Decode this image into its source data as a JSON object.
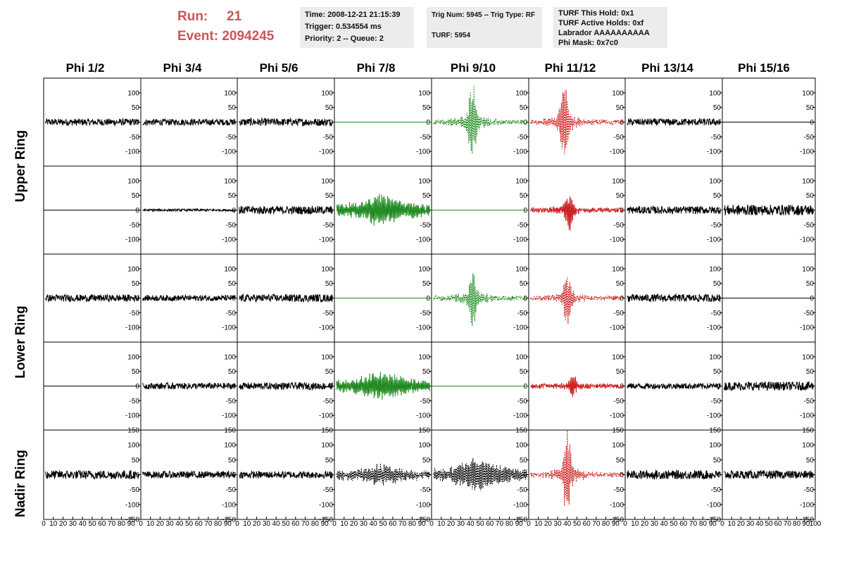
{
  "header": {
    "run_label": "Run:",
    "run_value": "21",
    "event_label": "Event:",
    "event_value": "2094245"
  },
  "info_boxes": {
    "time": "Time: 2008-12-21 21:15:39",
    "trigger": "Trigger: 0.534554 ms",
    "priority": "Priority: 2 -- Queue: 2",
    "trig_num": "Trig Num: 5945 -- Trig Type: RF",
    "turf": "TURF: 5954",
    "turf_this_hold": "TURF This Hold: 0x1",
    "turf_active_holds": "TURF Active Holds: 0xf",
    "labrador": "Labrador AAAAAAAAAA",
    "phi_mask": "Phi Mask: 0x7c0"
  },
  "columns": [
    "Phi 1/2",
    "Phi 3/4",
    "Phi 5/6",
    "Phi 7/8",
    "Phi 9/10",
    "Phi 11/12",
    "Phi 13/14",
    "Phi 15/16"
  ],
  "row_groups": [
    "Upper Ring",
    "Lower Ring",
    "Nadir Ring"
  ],
  "colors": {
    "normal": "#000000",
    "green": "#228b22",
    "red": "#cc2222"
  },
  "chart_data": {
    "type": "line",
    "xlim": [
      0,
      100
    ],
    "x_ticks": [
      "0",
      "10",
      "20",
      "30",
      "40",
      "50",
      "60",
      "70",
      "80",
      "90",
      "100"
    ],
    "ylim_ring": [
      -150,
      150
    ],
    "ylim_nadir": [
      -150,
      150
    ],
    "y_ticks_ring": [
      "100",
      "50",
      "0",
      "-50",
      "-100"
    ],
    "y_ticks_nadir": [
      "150",
      "100",
      "50",
      "0",
      "-50",
      "-100",
      "-150"
    ],
    "panel_rows": [
      {
        "group": "Upper Ring",
        "panels": [
          {
            "style": "noise",
            "amp": 12,
            "color": "normal"
          },
          {
            "style": "noise",
            "amp": 11,
            "color": "normal"
          },
          {
            "style": "noise",
            "amp": 13,
            "color": "normal"
          },
          {
            "style": "flat",
            "amp": 0,
            "color": "green"
          },
          {
            "style": "pulse",
            "amp": 120,
            "color": "green",
            "center": 42
          },
          {
            "style": "pulse",
            "amp": 130,
            "color": "red",
            "center": 37
          },
          {
            "style": "noise",
            "amp": 12,
            "color": "normal"
          },
          {
            "style": "flat",
            "amp": 0,
            "color": "normal"
          }
        ]
      },
      {
        "group": "Upper Ring",
        "panels": [
          {
            "style": "flat",
            "amp": 0,
            "color": "normal"
          },
          {
            "style": "noise",
            "amp": 4,
            "color": "normal"
          },
          {
            "style": "noise",
            "amp": 14,
            "color": "normal"
          },
          {
            "style": "wide",
            "amp": 55,
            "color": "green",
            "center": 50
          },
          {
            "style": "flat",
            "amp": 0,
            "color": "green"
          },
          {
            "style": "pulse",
            "amp": 65,
            "color": "red",
            "center": 42
          },
          {
            "style": "noise",
            "amp": 13,
            "color": "normal"
          },
          {
            "style": "noise",
            "amp": 18,
            "color": "normal"
          }
        ]
      },
      {
        "group": "Lower Ring",
        "panels": [
          {
            "style": "noise",
            "amp": 12,
            "color": "normal"
          },
          {
            "style": "noise",
            "amp": 10,
            "color": "normal"
          },
          {
            "style": "noise",
            "amp": 13,
            "color": "normal"
          },
          {
            "style": "flat",
            "amp": 0,
            "color": "green"
          },
          {
            "style": "pulse",
            "amp": 95,
            "color": "green",
            "center": 42
          },
          {
            "style": "pulse",
            "amp": 80,
            "color": "red",
            "center": 40
          },
          {
            "style": "noise",
            "amp": 13,
            "color": "normal"
          },
          {
            "style": "flat",
            "amp": 0,
            "color": "normal"
          }
        ]
      },
      {
        "group": "Lower Ring",
        "panels": [
          {
            "style": "flat",
            "amp": 0,
            "color": "normal"
          },
          {
            "style": "noise",
            "amp": 11,
            "color": "normal"
          },
          {
            "style": "noise",
            "amp": 12,
            "color": "normal"
          },
          {
            "style": "wide",
            "amp": 50,
            "color": "green",
            "center": 50
          },
          {
            "style": "flat",
            "amp": 0,
            "color": "green"
          },
          {
            "style": "pulse",
            "amp": 40,
            "color": "red",
            "center": 45
          },
          {
            "style": "noise",
            "amp": 10,
            "color": "normal"
          },
          {
            "style": "noise",
            "amp": 15,
            "color": "normal"
          }
        ]
      },
      {
        "group": "Nadir Ring",
        "panels": [
          {
            "style": "noise",
            "amp": 15,
            "color": "normal"
          },
          {
            "style": "noise",
            "amp": 12,
            "color": "normal"
          },
          {
            "style": "noise",
            "amp": 12,
            "color": "normal"
          },
          {
            "style": "wide",
            "amp": 35,
            "color": "normal",
            "center": 48
          },
          {
            "style": "wide",
            "amp": 55,
            "color": "normal",
            "center": 48
          },
          {
            "style": "pulse",
            "amp": 130,
            "color": "red",
            "center": 40
          },
          {
            "style": "noise",
            "amp": 15,
            "color": "normal"
          },
          {
            "style": "noise",
            "amp": 14,
            "color": "normal"
          }
        ]
      }
    ]
  }
}
